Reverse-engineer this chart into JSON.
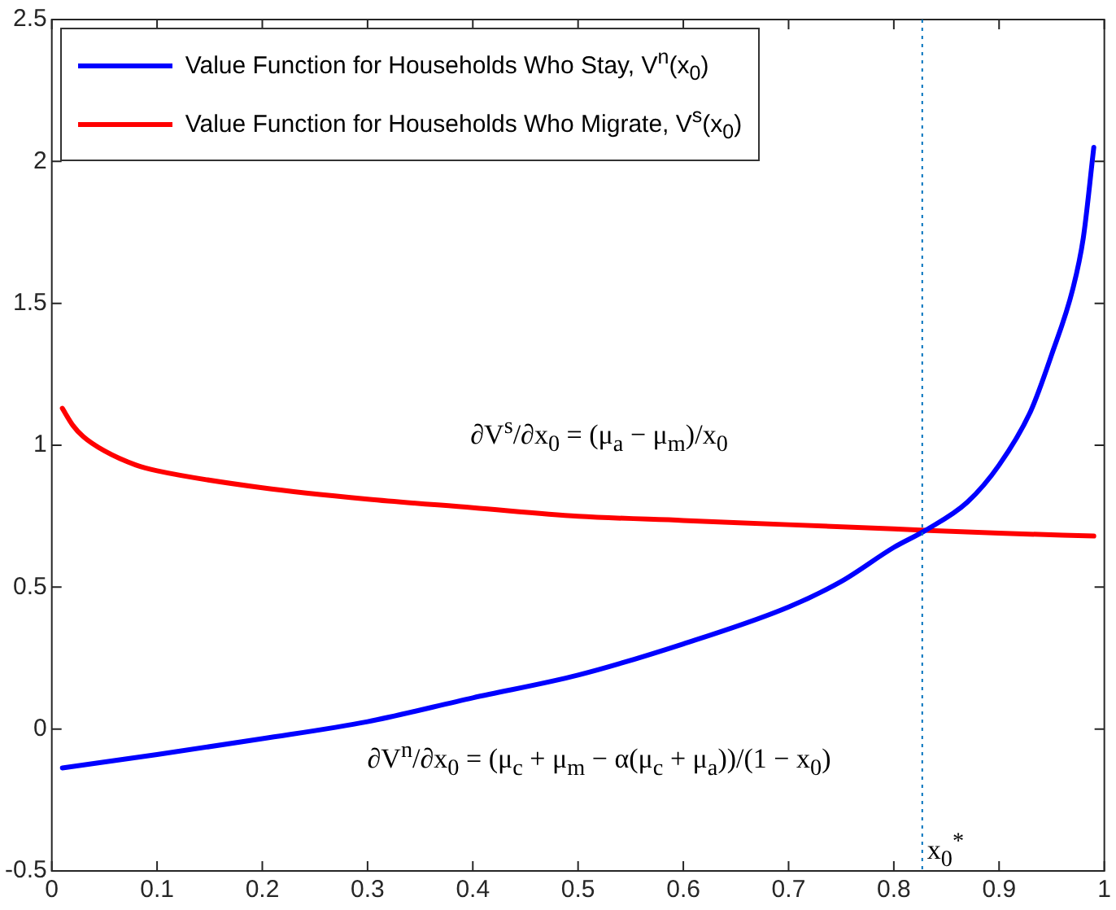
{
  "chart_data": {
    "type": "line",
    "xlim": [
      0,
      1
    ],
    "ylim": [
      -0.5,
      2.5
    ],
    "xticks": [
      0,
      0.1,
      0.2,
      0.3,
      0.4,
      0.5,
      0.6,
      0.7,
      0.8,
      0.9,
      1
    ],
    "yticks": [
      -0.5,
      0,
      0.5,
      1,
      1.5,
      2,
      2.5
    ],
    "grid": false,
    "legend": "top left",
    "marker": "none",
    "line_style": "solid",
    "series": [
      {
        "name": "Value Function for Households Who Stay, V$^{n}$(x$_{0}$)",
        "color": "#0000ff",
        "x": [
          0.01,
          0.1,
          0.2,
          0.3,
          0.4,
          0.5,
          0.6,
          0.7,
          0.75,
          0.8,
          0.83,
          0.87,
          0.9,
          0.93,
          0.95,
          0.97,
          0.98,
          0.99
        ],
        "values": [
          -0.137,
          -0.09,
          -0.034,
          0.026,
          0.11,
          0.19,
          0.3,
          0.43,
          0.52,
          0.64,
          0.7,
          0.8,
          0.93,
          1.12,
          1.32,
          1.55,
          1.73,
          2.05
        ]
      },
      {
        "name": "Value Function for Households Who Migrate, V$^{s}$(x$_{0}$)",
        "color": "#ff0000",
        "x": [
          0.01,
          0.02,
          0.03,
          0.05,
          0.08,
          0.1,
          0.2,
          0.3,
          0.4,
          0.5,
          0.6,
          0.7,
          0.8,
          0.9,
          0.99
        ],
        "values": [
          1.13,
          1.07,
          1.03,
          0.98,
          0.93,
          0.91,
          0.85,
          0.81,
          0.78,
          0.75,
          0.735,
          0.72,
          0.705,
          0.69,
          0.68
        ]
      }
    ],
    "ref_lines": [
      {
        "axis": "x",
        "value": 0.827,
        "label": "x$_{0}$$^{*}$",
        "color": "#0072bd",
        "line_style": "dotted"
      }
    ],
    "annotations": [
      "∂V$^{s}$/∂x$_{0}$ = (μ$_{a}$ − μ$_{m}$)/x$_{0}$",
      "∂V$^{n}$/∂x$_{0}$ = (μ$_{c}$ + μ$_{m}$ − α(μ$_{c}$ + μ$_{a}$))/(1 − x$_{0}$)"
    ]
  }
}
